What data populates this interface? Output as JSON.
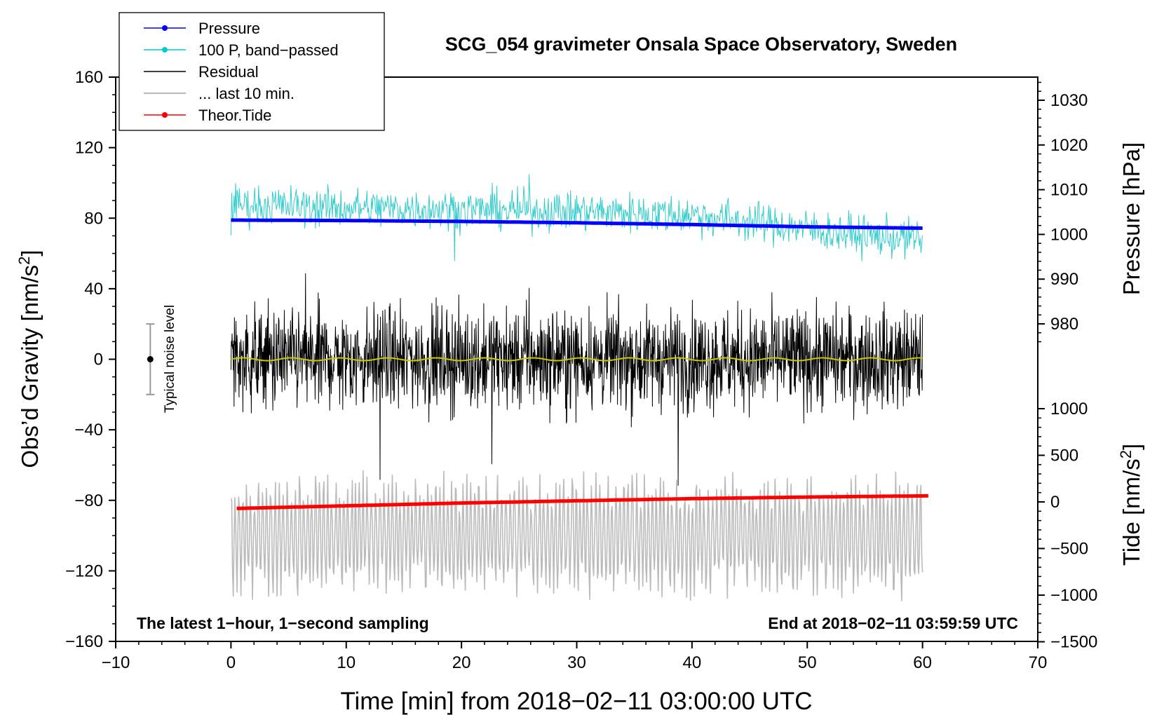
{
  "chart_data": {
    "type": "line",
    "title": "SCG_054 gravimeter Onsala Space Observatory, Sweden",
    "xlabel": "Time [min] from 2018−02−11 03:00:00 UTC",
    "ylabel_left": "Obs’d Gravity [nm/s²]",
    "ylabel_left_base": "Obs’d Gravity [nm/s",
    "ylabel_left_sup": "2",
    "ylabel_left_end": "]",
    "ylabel_right_pressure": "Pressure [hPa]",
    "ylabel_right_tide_base": "Tide [nm/s",
    "ylabel_right_tide_sup": "2",
    "ylabel_right_tide_end": "]",
    "xlim": [
      -10,
      70
    ],
    "ylim": [
      -160,
      160
    ],
    "pressure_lim": [
      975,
      1035
    ],
    "tide_lim": [
      -1500,
      1000
    ],
    "x_ticks": [
      "−10",
      "0",
      "10",
      "20",
      "30",
      "40",
      "50",
      "60",
      "70"
    ],
    "x_tick_values": [
      -10,
      0,
      10,
      20,
      30,
      40,
      50,
      60,
      70
    ],
    "y_ticks": [
      "160",
      "120",
      "80",
      "40",
      "0",
      "−40",
      "−80",
      "−120",
      "−160"
    ],
    "y_tick_values": [
      160,
      120,
      80,
      40,
      0,
      -40,
      -80,
      -120,
      -160
    ],
    "pressure_ticks": [
      "1030",
      "1020",
      "1010",
      "1000",
      "990",
      "980"
    ],
    "pressure_tick_values": [
      1030,
      1020,
      1010,
      1000,
      990,
      980
    ],
    "tide_ticks": [
      "1000",
      "500",
      "0",
      "−500",
      "−1000",
      "−1500"
    ],
    "tide_tick_values": [
      1000,
      500,
      0,
      -500,
      -1000,
      -1500
    ],
    "legend": [
      {
        "label": "Pressure",
        "color": "#0000ff",
        "marker": true
      },
      {
        "label": "100 P, band−passed",
        "color": "#00cccc",
        "marker": true
      },
      {
        "label": "Residual",
        "color": "#000000",
        "marker": false
      },
      {
        "label": "... last 10 min.",
        "color": "#bbbbbb",
        "marker": false
      },
      {
        "label": "Theor.Tide",
        "color": "#ff0000",
        "marker": true
      }
    ],
    "legend_position": "top-left",
    "annotation_left": "The latest 1−hour, 1−second sampling",
    "annotation_right": "End at 2018−02−11 03:59:59 UTC",
    "noise_label": "Typical noise level",
    "noise_level": {
      "x": -7,
      "center": 0,
      "half_range": 20
    },
    "series": [
      {
        "name": "Pressure",
        "axis": "pressure",
        "color": "#0000ff",
        "x": [
          0,
          10,
          20,
          30,
          40,
          50,
          60
        ],
        "values": [
          1003.2,
          1003.1,
          1002.9,
          1002.6,
          1002.2,
          1001.7,
          1001.4
        ]
      },
      {
        "name": "100 P, band−passed",
        "axis": "gravity",
        "color": "#33cccc",
        "x": [
          0,
          10,
          20,
          30,
          40,
          50,
          55,
          60
        ],
        "values": [
          88,
          86,
          85,
          84,
          82,
          74,
          70,
          68
        ],
        "noise_amplitude": 8
      },
      {
        "name": "Residual",
        "axis": "gravity",
        "color": "#000000",
        "x": [
          0,
          60
        ],
        "values": [
          0,
          0
        ],
        "noise_amplitude": 20
      },
      {
        "name": "Smoothed residual",
        "axis": "gravity",
        "color": "#c8c800",
        "x": [
          0,
          60
        ],
        "values": [
          0,
          0
        ]
      },
      {
        "name": "... last 10 min.",
        "axis": "gravity",
        "color": "#bbbbbb",
        "x": [
          0,
          60
        ],
        "values": [
          -100,
          -100
        ],
        "noise_amplitude": 25
      },
      {
        "name": "Theor.Tide",
        "axis": "tide",
        "color": "#ff0000",
        "x": [
          0.5,
          10,
          20,
          30,
          40,
          50,
          60.5
        ],
        "values": [
          -70,
          -42,
          -12,
          12,
          35,
          52,
          65
        ]
      }
    ],
    "colors": {
      "pressure": "#0000ff",
      "bandpassed": "#33cccc",
      "residual": "#000000",
      "smoothed": "#c8c800",
      "last10": "#bbbbbb",
      "tide": "#ff0000"
    }
  }
}
